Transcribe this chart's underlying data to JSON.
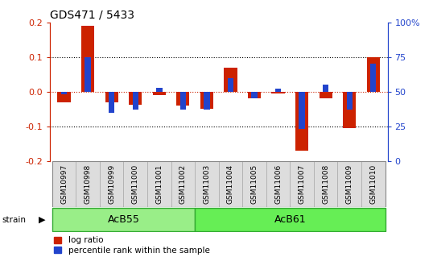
{
  "title": "GDS471 / 5433",
  "samples": [
    "GSM10997",
    "GSM10998",
    "GSM10999",
    "GSM11000",
    "GSM11001",
    "GSM11002",
    "GSM11003",
    "GSM11004",
    "GSM11005",
    "GSM11006",
    "GSM11007",
    "GSM11008",
    "GSM11009",
    "GSM11010"
  ],
  "log_ratios": [
    -0.03,
    0.19,
    -0.03,
    -0.038,
    -0.01,
    -0.04,
    -0.05,
    0.07,
    -0.02,
    -0.005,
    -0.17,
    -0.02,
    -0.105,
    0.1
  ],
  "percentile_ranks": [
    48,
    75,
    35,
    37,
    53,
    37,
    37,
    60,
    45,
    52,
    23,
    55,
    37,
    70
  ],
  "strains": [
    {
      "name": "AcB55",
      "start": 0,
      "end": 6
    },
    {
      "name": "AcB61",
      "start": 6,
      "end": 14
    }
  ],
  "ylim": [
    -0.2,
    0.2
  ],
  "right_ylim": [
    0,
    100
  ],
  "red_color": "#cc2200",
  "blue_color": "#2244cc",
  "background_color": "#ffffff",
  "strain_colors": [
    "#99ee88",
    "#66ee55"
  ],
  "dotted_lines": [
    -0.1,
    0.0,
    0.1
  ],
  "zero_line_color": "#cc2200"
}
